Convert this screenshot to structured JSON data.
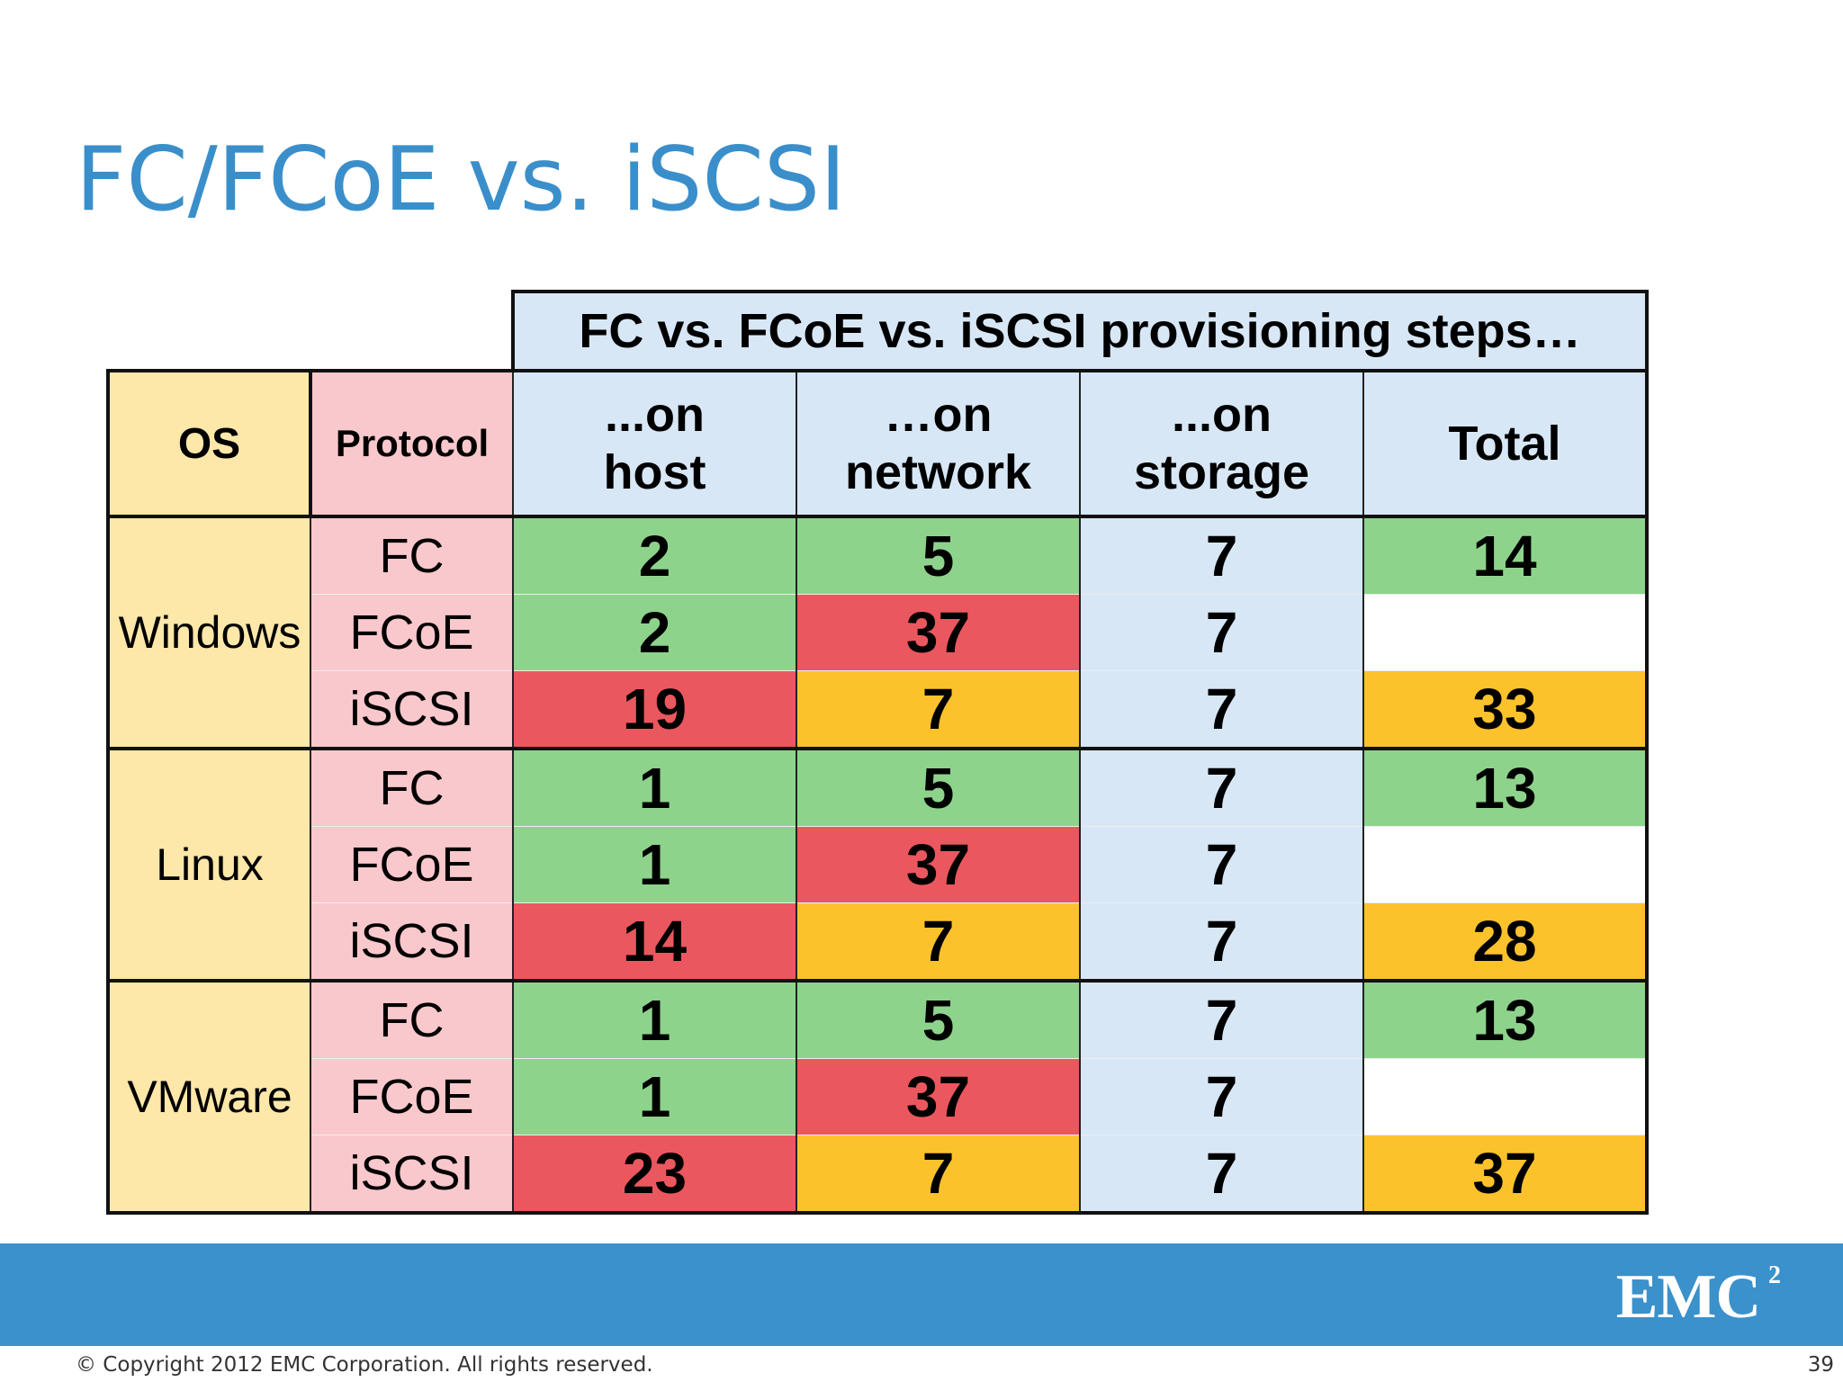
{
  "slide": {
    "title": "FC/FCoE vs. iSCSI",
    "table_title": "FC vs. FCoE vs. iSCSI provisioning steps…",
    "headers": {
      "os": "OS",
      "protocol": "Protocol",
      "host_line1": "...on",
      "host_line2": "host",
      "network_line1": "…on",
      "network_line2": "network",
      "storage_line1": "...on",
      "storage_line2": "storage",
      "total": "Total"
    },
    "groups": [
      {
        "os": "Windows",
        "rows": [
          {
            "protocol": "FC",
            "host": "2",
            "network": "5",
            "storage": "7",
            "total": "14"
          },
          {
            "protocol": "FCoE",
            "host": "2",
            "network": "37",
            "storage": "7",
            "total": ""
          },
          {
            "protocol": "iSCSI",
            "host": "19",
            "network": "7",
            "storage": "7",
            "total": "33"
          }
        ]
      },
      {
        "os": "Linux",
        "rows": [
          {
            "protocol": "FC",
            "host": "1",
            "network": "5",
            "storage": "7",
            "total": "13"
          },
          {
            "protocol": "FCoE",
            "host": "1",
            "network": "37",
            "storage": "7",
            "total": ""
          },
          {
            "protocol": "iSCSI",
            "host": "14",
            "network": "7",
            "storage": "7",
            "total": "28"
          }
        ]
      },
      {
        "os": "VMware",
        "rows": [
          {
            "protocol": "FC",
            "host": "1",
            "network": "5",
            "storage": "7",
            "total": "13"
          },
          {
            "protocol": "FCoE",
            "host": "1",
            "network": "37",
            "storage": "7",
            "total": ""
          },
          {
            "protocol": "iSCSI",
            "host": "23",
            "network": "7",
            "storage": "7",
            "total": "37"
          }
        ]
      }
    ],
    "colors": {
      "title": "#3a8fcb",
      "os_column": "#fde7a9",
      "protocol_column": "#f9c8cc",
      "header_blue": "#d8e7f6",
      "fewest_steps_green": "#8ed38c",
      "most_steps_red": "#eb575f",
      "mid_steps_amber": "#fcc22c",
      "footer_band": "#3a91cb"
    }
  },
  "footer": {
    "logo_text": "EMC",
    "logo_superscript": "2",
    "copyright": "© Copyright 2012 EMC Corporation. All rights reserved.",
    "page_number": "39"
  }
}
